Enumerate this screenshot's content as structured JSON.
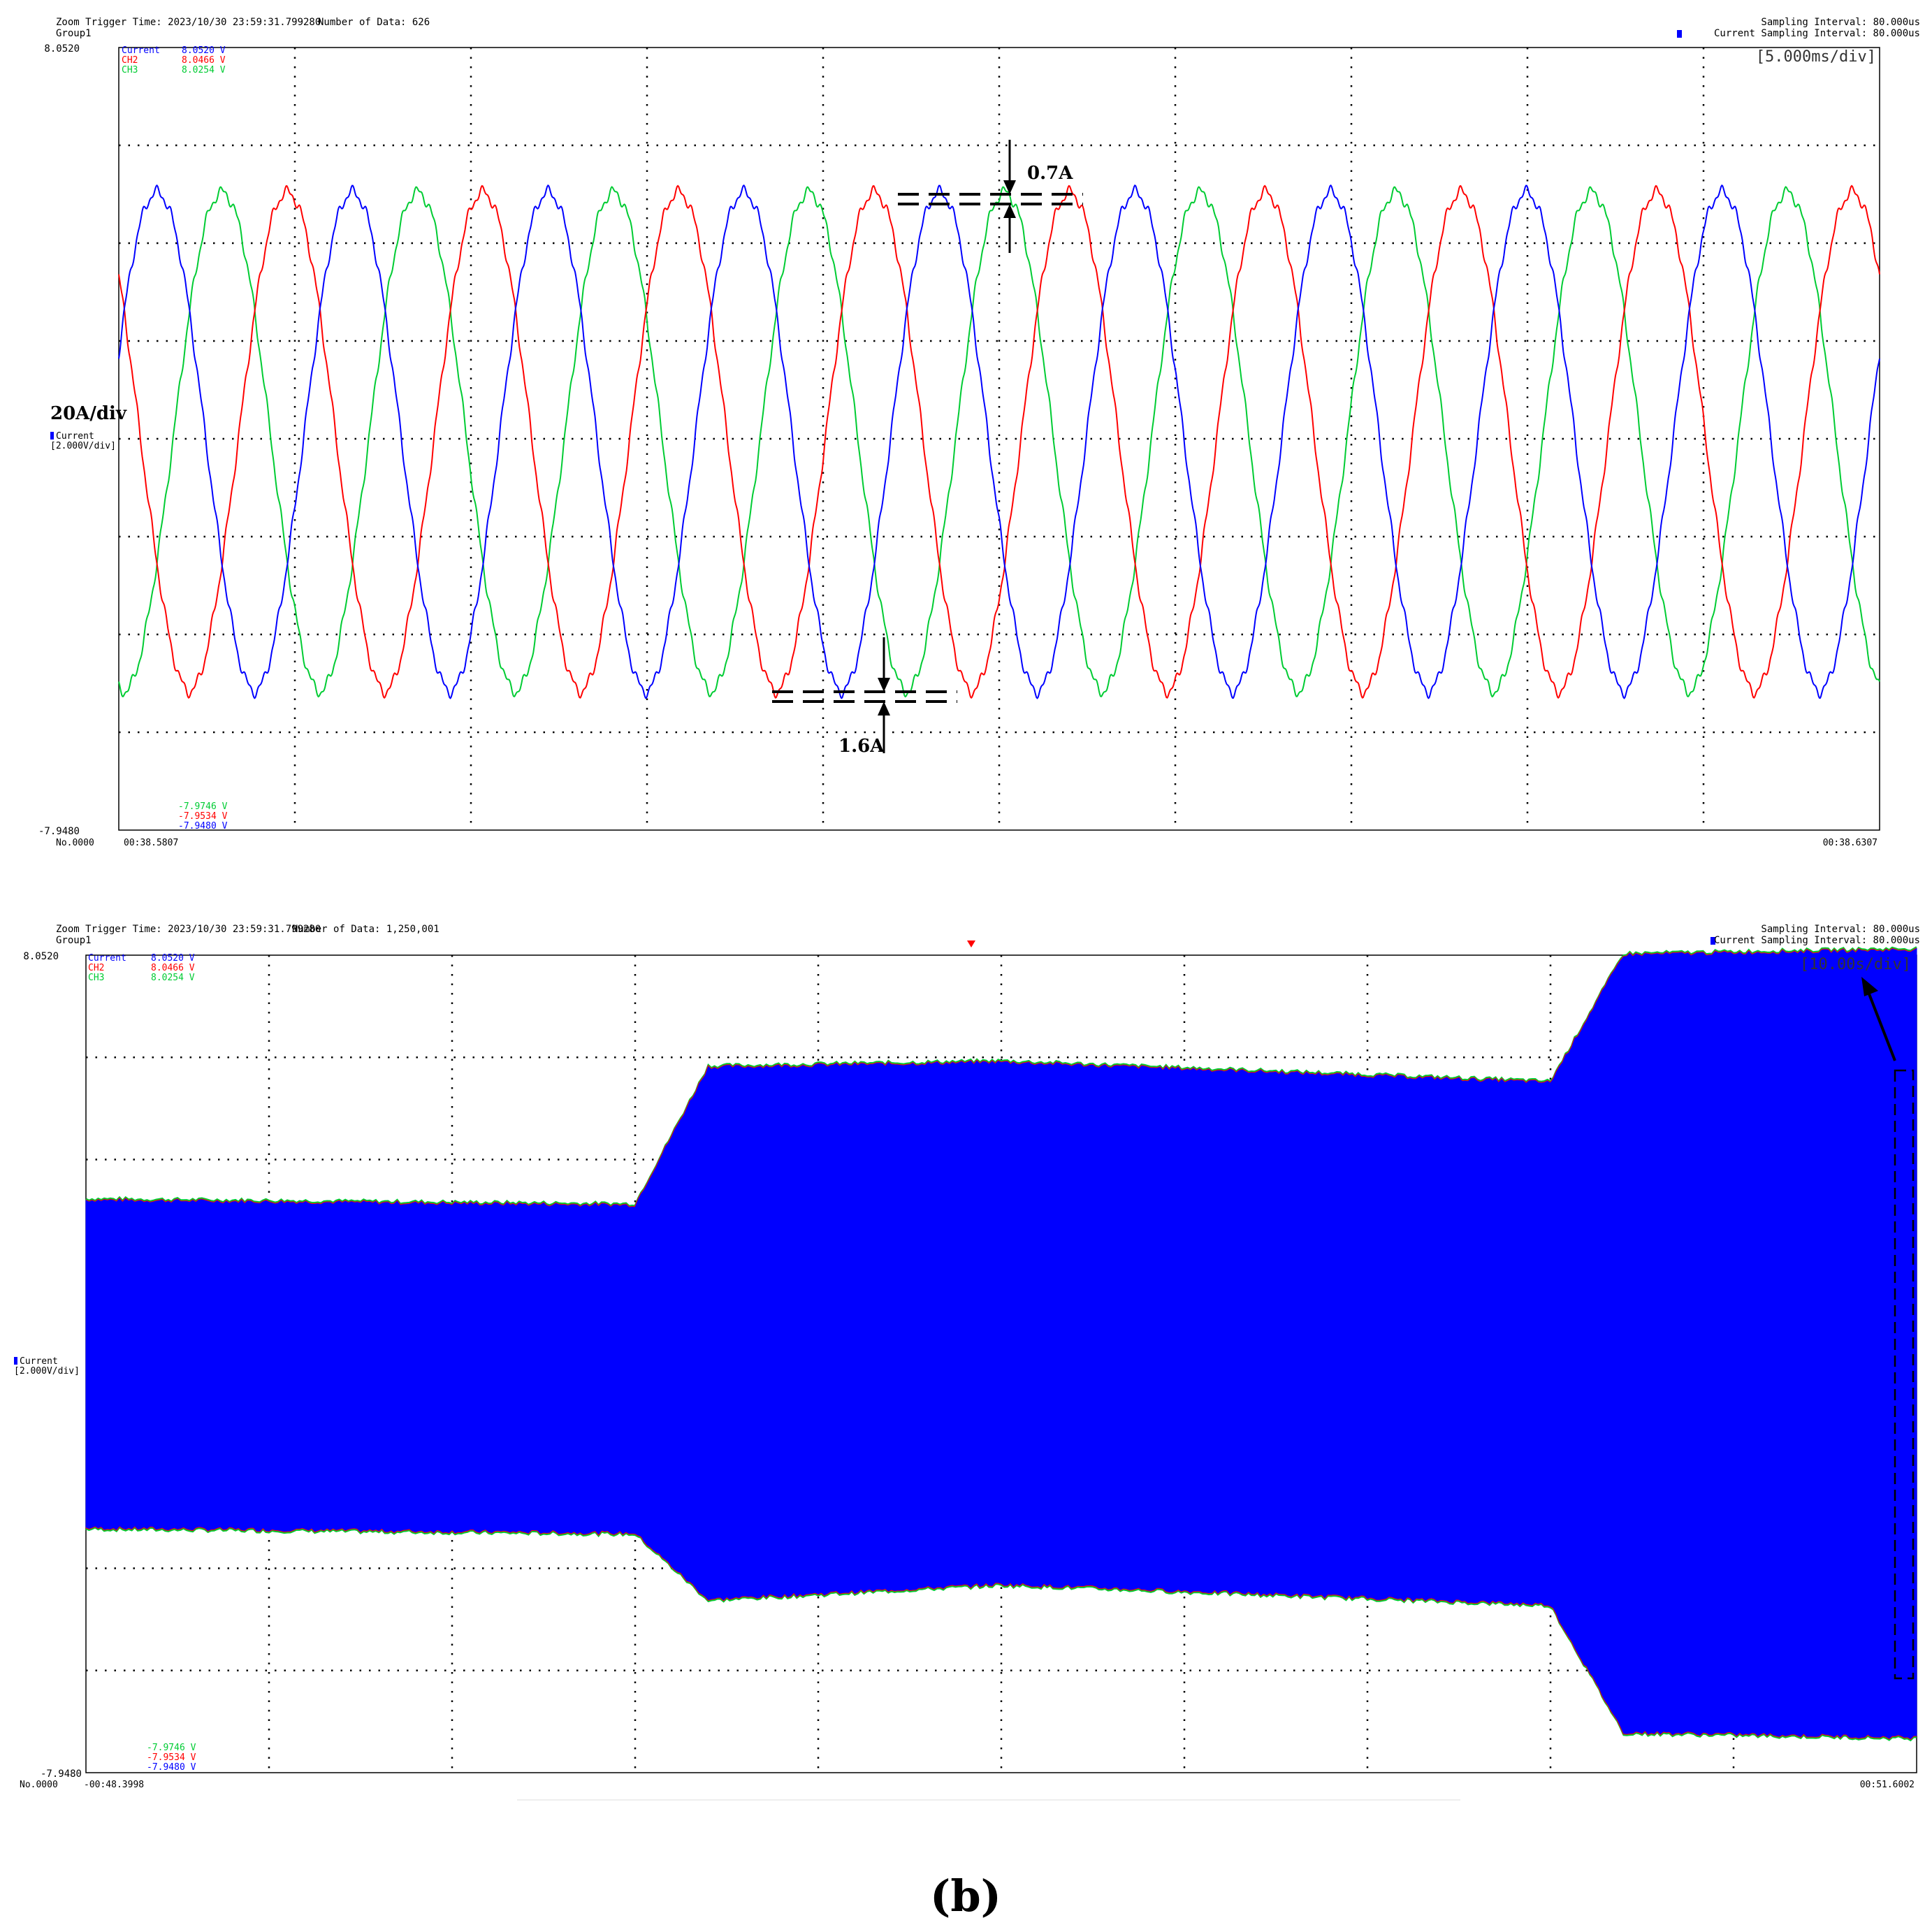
{
  "colors": {
    "current": "#0000ff",
    "ch2": "#ff0000",
    "ch3": "#00cc33",
    "frame": "#000000"
  },
  "chart_data": [
    {
      "type": "line",
      "header": {
        "trigger_time": "Zoom Trigger Time: 2023/10/30 23:59:31.799280",
        "number_of_data": "Number of Data: 626",
        "group": "Group1",
        "sampling_interval": "Sampling Interval:  80.000us",
        "current_sampling_interval": "Current Sampling Interval:  80.000us"
      },
      "timebase": "[5.000ms/div]",
      "scale_label": "20A/div",
      "channel_label": "Current",
      "channel_scale": "[2.000V/div]",
      "y_top": "8.0520",
      "y_bottom": "-7.9480",
      "ylim": [
        -7.948,
        8.052
      ],
      "x_start": "00:38.5807",
      "x_end": "00:38.6307",
      "record_no": "No.0000",
      "legend_max": [
        {
          "name": "Current",
          "value": "8.0520 V",
          "color": "#0000ff"
        },
        {
          "name": "CH2",
          "value": "8.0466 V",
          "color": "#ff0000"
        },
        {
          "name": "CH3",
          "value": "8.0254 V",
          "color": "#00cc33"
        }
      ],
      "legend_min": [
        {
          "value": "-7.9746 V",
          "color": "#00cc33"
        },
        {
          "value": "-7.9534 V",
          "color": "#ff0000"
        },
        {
          "value": "-7.9480 V",
          "color": "#0000ff"
        }
      ],
      "annotations": {
        "top": "0.7A",
        "bottom": "1.6A"
      },
      "divisions": {
        "x": 10,
        "y": 8
      },
      "waveform": {
        "amplitude_divs": 2.55,
        "cycles": 9.0,
        "phases_deg": [
          20,
          140,
          260
        ]
      }
    },
    {
      "type": "area",
      "header": {
        "trigger_time": "Zoom Trigger Time: 2023/10/30 23:59:31.799280",
        "number_of_data": "Number of Data: 1,250,001",
        "group": "Group1",
        "sampling_interval": "Sampling Interval:  80.000us",
        "current_sampling_interval": "Current Sampling Interval:  80.000us"
      },
      "timebase": "[10.00s/div]",
      "channel_label": "Current",
      "channel_scale": "[2.000V/div]",
      "y_top": "8.0520",
      "y_bottom": "-7.9480",
      "ylim": [
        -7.948,
        8.052
      ],
      "x_start": "-00:48.3998",
      "x_end": "00:51.6002",
      "record_no": "No.0000",
      "legend_max": [
        {
          "name": "Current",
          "value": "8.0520 V",
          "color": "#0000ff"
        },
        {
          "name": "CH2",
          "value": "8.0466 V",
          "color": "#ff0000"
        },
        {
          "name": "CH3",
          "value": "8.0254 V",
          "color": "#00cc33"
        }
      ],
      "legend_min": [
        {
          "value": "-7.9746 V",
          "color": "#00cc33"
        },
        {
          "value": "-7.9534 V",
          "color": "#ff0000"
        },
        {
          "value": "-7.9480 V",
          "color": "#0000ff"
        }
      ],
      "divisions": {
        "x": 10,
        "y": 8
      },
      "envelope_divs": [
        [
          0.0,
          0.0,
          1.6
        ],
        [
          3.0,
          -0.05,
          1.6
        ],
        [
          3.4,
          0.3,
          2.6
        ],
        [
          5.0,
          0.4,
          2.55
        ],
        [
          8.0,
          0.2,
          2.55
        ],
        [
          8.4,
          0.2,
          3.8
        ],
        [
          10.0,
          0.2,
          3.85
        ]
      ]
    }
  ],
  "caption": "(b)"
}
